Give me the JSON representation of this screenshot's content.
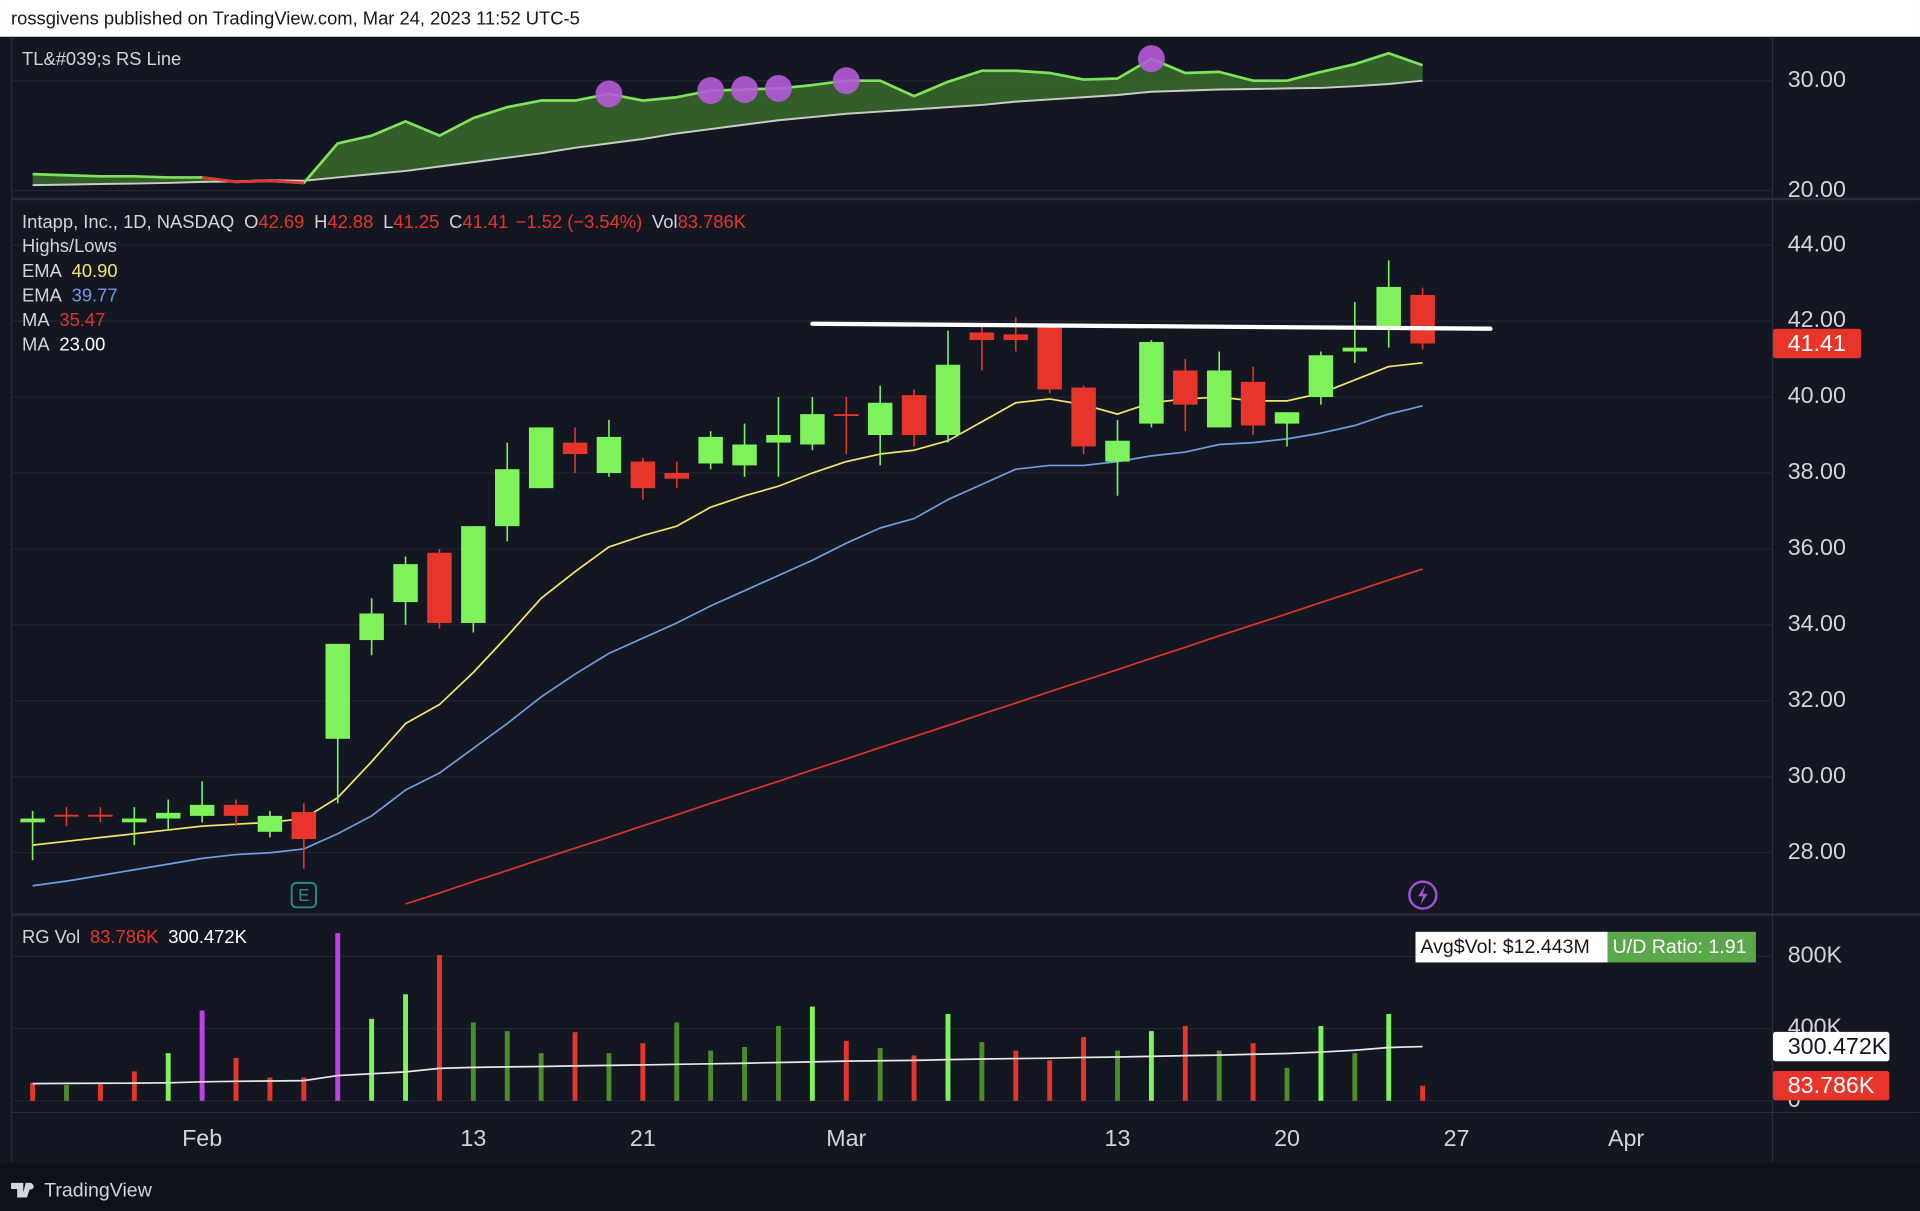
{
  "header": {
    "published": "rossgivens published on TradingView.com, Mar 24, 2023 11:52 UTC-5"
  },
  "footer": {
    "brand": "TradingView"
  },
  "chart_data": [
    {
      "type": "area",
      "title": "TL&#039;s RS Line",
      "ylim": [
        19.3,
        34.0
      ],
      "yticks": [
        {
          "value": 20,
          "label": "20.00"
        },
        {
          "value": 30,
          "label": "30.00"
        }
      ],
      "grid": true,
      "fill": "#3b6b2a",
      "series": [
        {
          "color": "#7ee35a",
          "down_color": "#e8352b",
          "values": [
            21.5,
            21.4,
            21.3,
            21.3,
            21.2,
            21.2,
            20.8,
            20.9,
            20.7,
            24.3,
            25.0,
            26.3,
            25.0,
            26.6,
            27.6,
            28.2,
            28.2,
            28.8,
            28.2,
            28.5,
            29.1,
            29.2,
            29.3,
            29.6,
            30.0,
            30.0,
            28.6,
            29.9,
            30.9,
            30.9,
            30.7,
            30.1,
            30.2,
            32.0,
            30.7,
            30.8,
            30.0,
            30.0,
            30.8,
            31.5,
            32.5,
            31.4
          ]
        },
        {
          "color": "#c9cdc4",
          "values": [
            20.5,
            20.55,
            20.6,
            20.65,
            20.7,
            20.8,
            20.85,
            20.95,
            20.9,
            21.2,
            21.5,
            21.8,
            22.2,
            22.6,
            23.0,
            23.4,
            23.9,
            24.3,
            24.7,
            25.2,
            25.6,
            26.0,
            26.4,
            26.7,
            27.0,
            27.2,
            27.4,
            27.6,
            27.8,
            28.1,
            28.3,
            28.5,
            28.7,
            29.0,
            29.1,
            29.2,
            29.25,
            29.3,
            29.35,
            29.5,
            29.7,
            30.0
          ]
        }
      ],
      "markers": {
        "color": "#b55bd6",
        "indices": [
          17,
          20,
          21,
          22,
          24,
          33
        ]
      }
    },
    {
      "type": "candlestick",
      "title": "Intapp, Inc., 1D, NASDAQ",
      "ohlc_labels": [
        "O",
        "H",
        "L",
        "C"
      ],
      "change": "−1.52 (−3.54%)",
      "volume_label": "Vol",
      "study": "Highs/Lows",
      "up_color": "#7ef25a",
      "down_color": "#e8352b",
      "ylim": [
        26.4,
        45.2
      ],
      "yticks": [
        {
          "value": 28,
          "label": "28.00"
        },
        {
          "value": 30,
          "label": "30.00"
        },
        {
          "value": 32,
          "label": "32.00"
        },
        {
          "value": 34,
          "label": "34.00"
        },
        {
          "value": 36,
          "label": "36.00"
        },
        {
          "value": 38,
          "label": "38.00"
        },
        {
          "value": 40,
          "label": "40.00"
        },
        {
          "value": 42,
          "label": "42.00"
        },
        {
          "value": 44,
          "label": "44.00"
        }
      ],
      "grid": true,
      "open": [
        28.8,
        29.0,
        29.0,
        28.8,
        28.9,
        28.97,
        29.26,
        28.55,
        29.07,
        31.0,
        33.6,
        34.6,
        35.9,
        34.05,
        36.6,
        37.6,
        38.8,
        38.0,
        38.3,
        38.0,
        38.25,
        38.2,
        38.8,
        38.75,
        39.55,
        39.0,
        40.05,
        39.0,
        41.7,
        41.65,
        41.85,
        40.25,
        38.3,
        39.3,
        40.7,
        39.2,
        40.4,
        39.3,
        40.0,
        41.2,
        41.85,
        42.69
      ],
      "high": [
        29.1,
        29.2,
        29.2,
        29.2,
        29.4,
        29.88,
        29.4,
        29.1,
        29.3,
        33.5,
        34.7,
        35.8,
        36.0,
        36.6,
        38.8,
        39.2,
        39.2,
        39.4,
        38.4,
        38.3,
        39.1,
        39.3,
        40.0,
        40.0,
        40.0,
        40.3,
        40.2,
        41.75,
        41.9,
        42.1,
        41.9,
        40.3,
        39.4,
        41.5,
        41.0,
        41.2,
        40.8,
        39.6,
        41.2,
        42.5,
        43.6,
        42.88
      ],
      "low": [
        27.8,
        28.7,
        28.8,
        28.2,
        28.6,
        28.8,
        28.7,
        28.4,
        27.58,
        29.3,
        33.2,
        34.0,
        33.9,
        33.8,
        36.2,
        37.6,
        38.0,
        37.9,
        37.3,
        37.6,
        38.1,
        37.9,
        37.9,
        38.6,
        38.5,
        38.2,
        38.7,
        38.8,
        40.7,
        41.2,
        40.1,
        38.5,
        37.4,
        39.2,
        39.1,
        39.2,
        39.0,
        38.7,
        39.8,
        40.9,
        41.3,
        41.25
      ],
      "close": [
        28.9,
        28.95,
        28.95,
        28.9,
        29.05,
        29.26,
        28.97,
        28.97,
        28.36,
        33.5,
        34.3,
        35.6,
        34.05,
        36.6,
        38.1,
        39.2,
        38.5,
        38.95,
        37.6,
        37.85,
        38.95,
        38.75,
        39.0,
        39.55,
        39.5,
        39.85,
        39.0,
        40.85,
        41.5,
        41.5,
        40.2,
        38.7,
        38.85,
        41.45,
        39.8,
        40.7,
        39.25,
        39.6,
        41.1,
        41.3,
        42.9,
        41.41
      ],
      "series": [
        {
          "name": "EMA",
          "color": "#f5e663",
          "last_label": "40.90",
          "values": [
            28.2,
            28.3,
            28.4,
            28.5,
            28.6,
            28.7,
            28.75,
            28.8,
            28.9,
            29.45,
            30.4,
            31.4,
            31.9,
            32.75,
            33.7,
            34.7,
            35.4,
            36.05,
            36.35,
            36.6,
            37.1,
            37.4,
            37.65,
            38.0,
            38.3,
            38.5,
            38.6,
            38.85,
            39.35,
            39.85,
            39.95,
            39.8,
            39.55,
            39.85,
            39.95,
            40.0,
            39.9,
            39.9,
            40.1,
            40.45,
            40.8,
            40.9
          ]
        },
        {
          "name": "EMA",
          "color": "#6f9be0",
          "last_label": "39.77",
          "values": [
            27.13,
            27.25,
            27.4,
            27.55,
            27.7,
            27.85,
            27.95,
            28.0,
            28.1,
            28.5,
            28.97,
            29.65,
            30.1,
            30.75,
            31.4,
            32.1,
            32.7,
            33.25,
            33.65,
            34.05,
            34.5,
            34.9,
            35.3,
            35.7,
            36.15,
            36.55,
            36.8,
            37.3,
            37.7,
            38.1,
            38.2,
            38.2,
            38.3,
            38.45,
            38.55,
            38.75,
            38.8,
            38.9,
            39.05,
            39.25,
            39.55,
            39.77
          ]
        },
        {
          "name": "MA",
          "color": "#e0342a",
          "last_label": "35.47",
          "values": [
            null,
            null,
            null,
            null,
            null,
            null,
            null,
            null,
            null,
            null,
            null,
            26.65,
            26.94,
            27.24,
            27.53,
            27.83,
            28.12,
            28.41,
            28.71,
            29.0,
            29.3,
            29.59,
            29.88,
            30.18,
            30.47,
            30.77,
            31.06,
            31.35,
            31.65,
            31.94,
            32.24,
            32.53,
            32.82,
            33.12,
            33.41,
            33.71,
            34.0,
            34.29,
            34.59,
            34.88,
            35.18,
            35.47
          ]
        }
      ],
      "extra_legend": {
        "name": "MA",
        "value": "23.00"
      },
      "trendline": {
        "color": "#ffffff",
        "x": [
          23,
          43
        ],
        "y": [
          41.93,
          41.8
        ]
      },
      "earnings_label": "E"
    },
    {
      "type": "bar",
      "title": "RG Vol",
      "xlim": [
        -0.6,
        51.3
      ],
      "xticks": [
        {
          "value": 5,
          "label": "Feb"
        },
        {
          "value": 13,
          "label": "13"
        },
        {
          "value": 18,
          "label": "21"
        },
        {
          "value": 24,
          "label": "Mar"
        },
        {
          "value": 32,
          "label": "13"
        },
        {
          "value": 37,
          "label": "20"
        },
        {
          "value": 42,
          "label": "27"
        },
        {
          "value": 47,
          "label": "Apr"
        }
      ],
      "ylim": [
        -61000,
        1024000
      ],
      "yticks": [
        0,
        {
          "value": 400000,
          "label": "400K"
        },
        {
          "value": 800000,
          "label": "800K"
        }
      ],
      "grid": true,
      "values": [
        100000,
        88000,
        100000,
        163000,
        264000,
        500000,
        237000,
        129000,
        129000,
        929000,
        454000,
        590000,
        807000,
        434000,
        386000,
        264000,
        380000,
        264000,
        319000,
        434000,
        278000,
        298000,
        414000,
        522000,
        332000,
        292000,
        251000,
        481000,
        325000,
        278000,
        224000,
        353000,
        278000,
        386000,
        414000,
        278000,
        319000,
        183000,
        414000,
        264000,
        481000,
        83786
      ],
      "colors": [
        "#e8352b",
        "#4c8c2b",
        "#e8352b",
        "#e8352b",
        "#7ef25a",
        "#c23fe6",
        "#e8352b",
        "#e8352b",
        "#e8352b",
        "#c23fe6",
        "#7ef25a",
        "#7ef25a",
        "#e8352b",
        "#4c8c2b",
        "#4c8c2b",
        "#4c8c2b",
        "#e8352b",
        "#4c8c2b",
        "#e8352b",
        "#4c8c2b",
        "#4c8c2b",
        "#4c8c2b",
        "#4c8c2b",
        "#7ef25a",
        "#e8352b",
        "#4c8c2b",
        "#e8352b",
        "#7ef25a",
        "#4c8c2b",
        "#e8352b",
        "#e8352b",
        "#e8352b",
        "#4c8c2b",
        "#7ef25a",
        "#e8352b",
        "#4c8c2b",
        "#e8352b",
        "#4c8c2b",
        "#7ef25a",
        "#4c8c2b",
        "#7ef25a",
        "#e8352b"
      ],
      "last_label": "83.786K",
      "last_color": "#e8352b",
      "ma": {
        "color": "#e8e8e8",
        "last_label": "300.472K",
        "values": [
          95000,
          96000,
          97000,
          98000,
          100000,
          105000,
          108000,
          110000,
          112000,
          140000,
          150000,
          160000,
          180000,
          185000,
          188000,
          190000,
          193000,
          196000,
          199000,
          202000,
          205000,
          208000,
          212000,
          216000,
          220000,
          222000,
          224000,
          228000,
          231000,
          234000,
          236000,
          240000,
          243000,
          246000,
          250000,
          253000,
          258000,
          262000,
          270000,
          280000,
          295000,
          300472
        ]
      },
      "info": [
        "Avg$Vol: $12.443M",
        "U/D Ratio: 1.91"
      ]
    }
  ]
}
